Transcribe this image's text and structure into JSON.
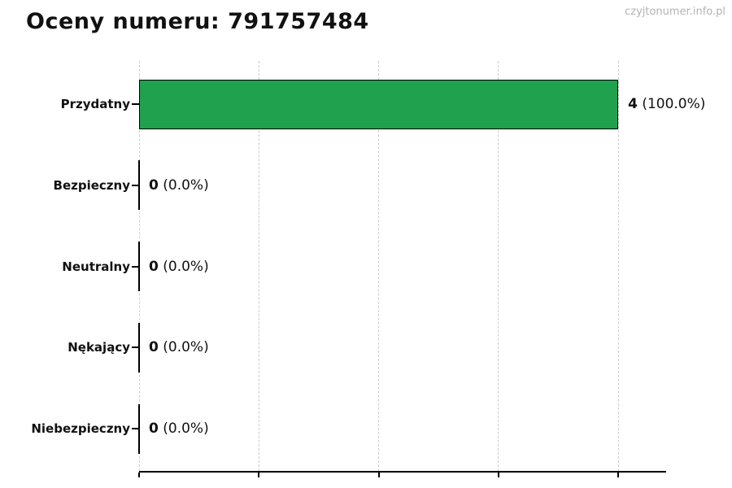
{
  "header": {
    "title": "Oceny numeru: 791757484",
    "watermark": "czyjtonumer.info.pl"
  },
  "chart_data": {
    "type": "bar",
    "orientation": "horizontal",
    "title": "Oceny numeru: 791757484",
    "categories": [
      "Przydatny",
      "Bezpieczny",
      "Neutralny",
      "Nękający",
      "Niebezpieczny"
    ],
    "values": [
      4,
      0,
      0,
      0,
      0
    ],
    "value_counts": [
      "4",
      "0",
      "0",
      "0",
      "0"
    ],
    "value_pcts": [
      "(100.0%)",
      "(0.0%)",
      "(0.0%)",
      "(0.0%)",
      "(0.0%)"
    ],
    "xlim": [
      0,
      4.4
    ],
    "x_ticks": [
      0,
      1,
      2,
      3,
      4
    ],
    "x_tick_labels": [
      "",
      "",
      "",
      "",
      ""
    ],
    "grid": "vertical-dashed",
    "legend": "none"
  },
  "colors": {
    "bar_fill": "#1fa14d",
    "bar_edge": "#000000",
    "grid": "#cccccc",
    "axis": "#000000",
    "text": "#111111",
    "watermark": "#b3b3b3",
    "background": "#ffffff"
  }
}
